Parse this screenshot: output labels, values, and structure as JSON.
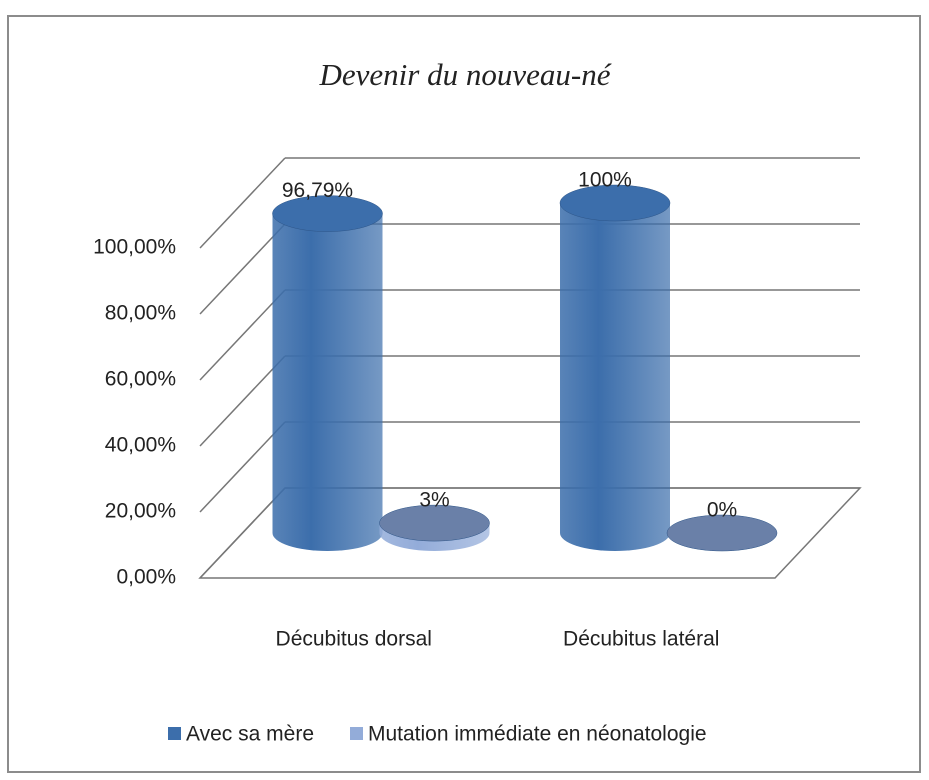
{
  "chart_data": {
    "type": "bar3d",
    "title": "Devenir du nouveau-né",
    "categories": [
      "Décubitus dorsal",
      "Décubitus latéral"
    ],
    "series": [
      {
        "name": "Avec sa mère",
        "color": "#3c6eab",
        "values": [
          96.79,
          100
        ],
        "value_labels": [
          "96,79%",
          "100%"
        ]
      },
      {
        "name": "Mutation immédiate en néonatologie",
        "color": "#93acd9",
        "values": [
          3,
          0
        ],
        "value_labels": [
          "3%",
          "0%"
        ]
      }
    ],
    "ylim": [
      0,
      100
    ],
    "yticks": [
      {
        "value": 0,
        "label": "0,00%"
      },
      {
        "value": 20,
        "label": "20,00%"
      },
      {
        "value": 40,
        "label": "40,00%"
      },
      {
        "value": 60,
        "label": "60,00%"
      },
      {
        "value": 80,
        "label": "80,00%"
      },
      {
        "value": 100,
        "label": "100,00%"
      }
    ],
    "grid": true,
    "legend": "bottom"
  }
}
